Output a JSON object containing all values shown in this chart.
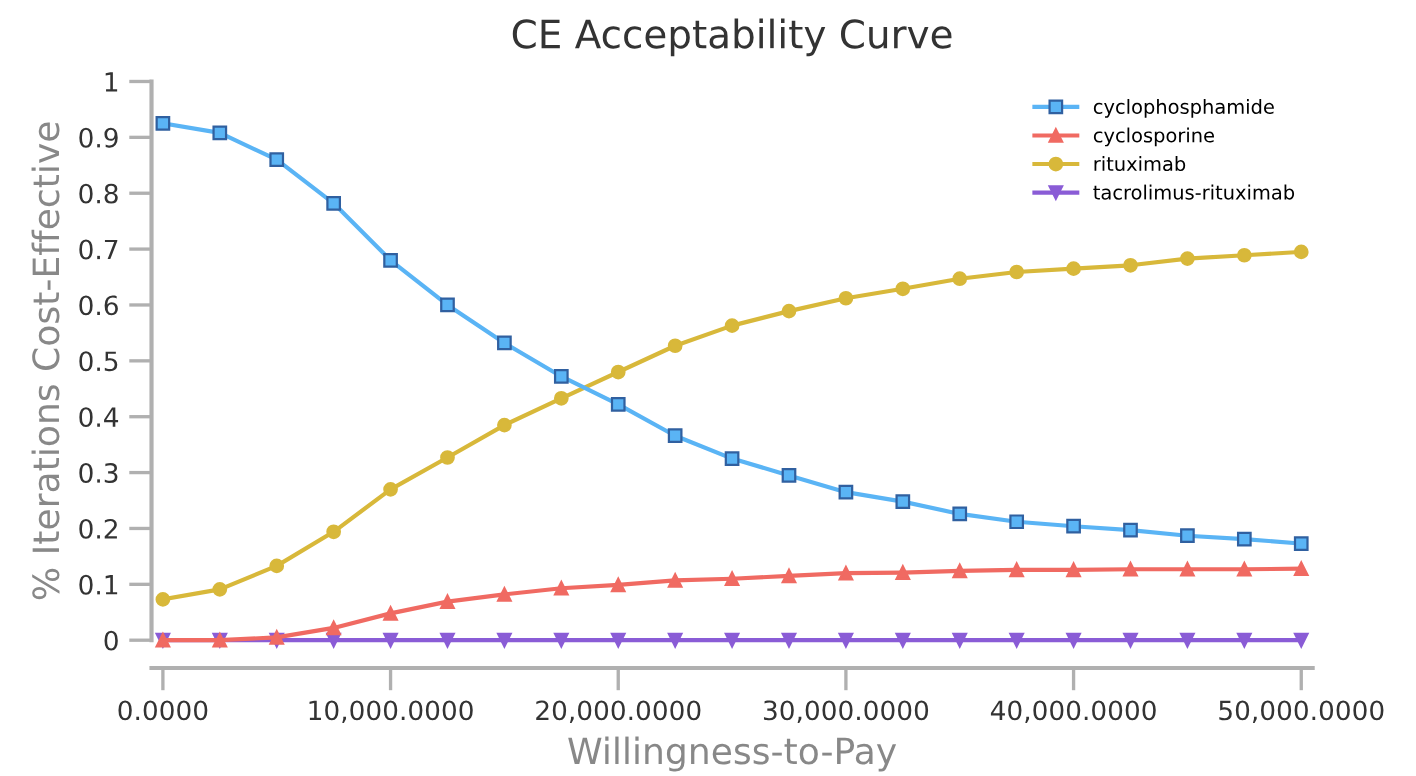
{
  "chart_data": {
    "type": "line",
    "title": "CE Acceptability Curve",
    "xlabel": "Willingness-to-Pay",
    "ylabel": "% Iterations Cost-Effective",
    "x": [
      0,
      2500,
      5000,
      7500,
      10000,
      12500,
      15000,
      17500,
      20000,
      22500,
      25000,
      27500,
      30000,
      32500,
      35000,
      37500,
      40000,
      42500,
      45000,
      47500,
      50000
    ],
    "series": [
      {
        "name": "cyclophosphamide",
        "color": "#5ab4f5",
        "marker": "square",
        "values": [
          0.925,
          0.908,
          0.86,
          0.782,
          0.68,
          0.6,
          0.532,
          0.472,
          0.422,
          0.366,
          0.325,
          0.295,
          0.265,
          0.248,
          0.226,
          0.212,
          0.204,
          0.197,
          0.187,
          0.181,
          0.173
        ]
      },
      {
        "name": "cyclosporine",
        "color": "#f06a62",
        "marker": "triangle",
        "values": [
          0,
          0,
          0.005,
          0.022,
          0.048,
          0.069,
          0.082,
          0.093,
          0.099,
          0.107,
          0.11,
          0.115,
          0.12,
          0.121,
          0.124,
          0.126,
          0.126,
          0.127,
          0.127,
          0.127,
          0.128
        ]
      },
      {
        "name": "rituximab",
        "color": "#d8b83a",
        "marker": "circle",
        "values": [
          0.073,
          0.091,
          0.133,
          0.194,
          0.27,
          0.327,
          0.385,
          0.433,
          0.48,
          0.527,
          0.563,
          0.589,
          0.612,
          0.629,
          0.647,
          0.659,
          0.665,
          0.671,
          0.683,
          0.689,
          0.695
        ]
      },
      {
        "name": "tacrolimus-rituximab",
        "color": "#8a5cd6",
        "marker": "triangle_down",
        "values": [
          0,
          0,
          0,
          0,
          0,
          0,
          0,
          0,
          0,
          0,
          0,
          0,
          0,
          0,
          0,
          0,
          0,
          0,
          0,
          0,
          0
        ]
      }
    ],
    "xlim": [
      -500,
      50500
    ],
    "ylim": [
      0,
      1
    ],
    "xticks": [
      {
        "value": 0,
        "label": "0.0000"
      },
      {
        "value": 10000,
        "label": "10,000.0000"
      },
      {
        "value": 20000,
        "label": "20,000.0000"
      },
      {
        "value": 30000,
        "label": "30,000.0000"
      },
      {
        "value": 40000,
        "label": "40,000.0000"
      },
      {
        "value": 50000,
        "label": "50,000.0000"
      }
    ],
    "yticks": [
      0,
      0.1,
      0.2,
      0.3,
      0.4,
      0.5,
      0.6,
      0.7,
      0.8,
      0.9,
      1
    ],
    "grid": false,
    "legend": "top right",
    "line_style": "solid"
  }
}
